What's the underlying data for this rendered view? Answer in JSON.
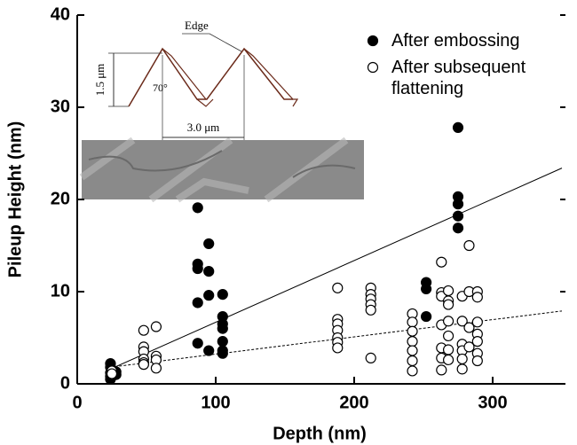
{
  "chart_data": {
    "type": "scatter",
    "xlabel": "Depth (nm)",
    "ylabel": "Pileup Height (nm)",
    "xlim": [
      0,
      350
    ],
    "ylim": [
      0,
      40
    ],
    "xticks": [
      0,
      100,
      200,
      300
    ],
    "yticks": [
      0,
      10,
      20,
      30,
      40
    ],
    "series": [
      {
        "name": "After embossing",
        "color": "#000000",
        "filled": true,
        "x": [
          24,
          24,
          24,
          24,
          24,
          28,
          28,
          87,
          87,
          87,
          87,
          87,
          95,
          95,
          95,
          95,
          105,
          105,
          105,
          105,
          105,
          105,
          105,
          252,
          252,
          252,
          275,
          275,
          275,
          275,
          275
        ],
        "values": [
          2.2,
          1.8,
          1.2,
          0.8,
          0.5,
          1.3,
          1.0,
          19.1,
          13.0,
          12.5,
          8.8,
          4.4,
          15.2,
          12.2,
          9.6,
          3.6,
          9.7,
          7.3,
          6.5,
          6.0,
          4.6,
          3.6,
          3.3,
          11.0,
          10.3,
          7.3,
          27.8,
          20.3,
          19.5,
          18.2,
          16.9
        ]
      },
      {
        "name": "After subsequent flattening",
        "color": "#000000",
        "filled": false,
        "x": [
          25,
          25,
          48,
          48,
          48,
          48,
          48,
          48,
          57,
          57,
          57,
          57,
          188,
          188,
          188,
          188,
          188,
          188,
          188,
          212,
          212,
          212,
          212,
          212,
          212,
          242,
          242,
          242,
          242,
          242,
          242,
          242,
          263,
          263,
          263,
          263,
          263,
          263,
          263,
          268,
          268,
          268,
          268,
          268,
          268,
          268,
          278,
          278,
          278,
          278,
          278,
          278,
          283,
          283,
          283,
          283,
          289,
          289,
          289,
          289,
          289,
          289,
          289
        ],
        "values": [
          1.4,
          1.1,
          5.8,
          4.0,
          3.5,
          2.7,
          2.3,
          2.1,
          6.2,
          3.0,
          2.6,
          1.7,
          10.4,
          7.0,
          6.5,
          5.8,
          5.0,
          4.5,
          3.9,
          10.4,
          9.7,
          9.2,
          8.6,
          8.0,
          2.8,
          7.6,
          6.7,
          5.7,
          4.6,
          3.6,
          2.5,
          1.4,
          13.2,
          9.9,
          9.5,
          6.4,
          3.9,
          2.8,
          1.5,
          10.1,
          9.0,
          8.6,
          6.8,
          5.2,
          3.7,
          2.6,
          9.5,
          6.8,
          4.3,
          3.6,
          2.7,
          1.6,
          15.0,
          10.0,
          6.1,
          4.0,
          10.0,
          9.4,
          6.7,
          5.4,
          4.6,
          3.3,
          2.5
        ]
      }
    ],
    "fits": [
      {
        "dash": false,
        "x": [
          24,
          350
        ],
        "values": [
          1.6,
          23.4
        ]
      },
      {
        "dash": true,
        "x": [
          24,
          350
        ],
        "values": [
          1.8,
          7.9
        ]
      }
    ],
    "inset": {
      "edge": "Edge",
      "height": "1.5 μm",
      "angle": "70°",
      "pitch": "3.0 μm"
    }
  }
}
